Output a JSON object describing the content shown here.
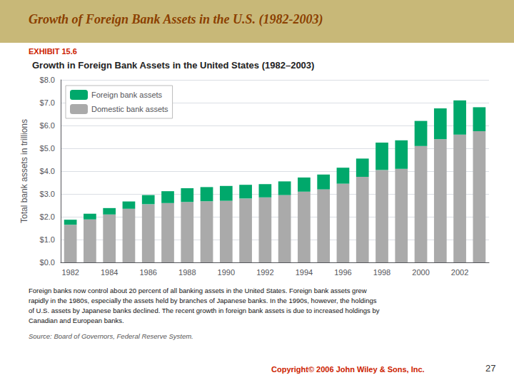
{
  "chart_data": {
    "type": "bar",
    "stacked": true,
    "title": "Growth in Foreign Bank Assets in the United States (1982–2003)",
    "annotations": [
      "Growth of Foreign Bank Assets in the U.S. (1982-2003)",
      "EXHIBIT 15.6",
      "Foreign banks now control about 20 percent of all banking assets in the United States. Foreign bank assets grew\nrapidly in the 1980s, especially the assets held by branches of Japanese banks. In the 1990s, however, the holdings\nof U.S. assets by Japanese banks declined. The recent growth in foreign bank assets is due to increased holdings by\nCanadian and European banks.",
      "Source: Board of Governors, Federal Reserve System.",
      "Copyright© 2006 John Wiley & Sons, Inc.",
      "27"
    ],
    "ylabel": "Total bank assets in trillions",
    "categories": [
      "1982",
      null,
      "1984",
      null,
      "1986",
      null,
      "1988",
      null,
      "1990",
      null,
      "1992",
      null,
      "1994",
      null,
      "1996",
      null,
      "1998",
      null,
      "2000",
      null,
      "2002",
      null
    ],
    "series": [
      {
        "name": "Domestic bank assets",
        "color": "#AAAAAA",
        "values": [
          1.65,
          1.88,
          2.1,
          2.35,
          2.55,
          2.6,
          2.65,
          2.68,
          2.7,
          2.8,
          2.85,
          2.95,
          3.1,
          3.2,
          3.45,
          3.75,
          4.05,
          4.1,
          5.1,
          5.4,
          5.6,
          5.75
        ]
      },
      {
        "name": "Foreign bank assets",
        "color": "#00A86B",
        "values": [
          0.22,
          0.25,
          0.28,
          0.32,
          0.4,
          0.52,
          0.6,
          0.62,
          0.65,
          0.6,
          0.58,
          0.6,
          0.62,
          0.65,
          0.7,
          0.8,
          1.2,
          1.25,
          1.1,
          1.35,
          1.5,
          1.05
        ]
      }
    ],
    "ylim": [
      0,
      8.0
    ],
    "yticks": [
      {
        "value": 0,
        "label": "$0.0"
      },
      {
        "value": 1.0,
        "label": "$1.0"
      },
      {
        "value": 2.0,
        "label": "$2.0"
      },
      {
        "value": 3.0,
        "label": "$3.0"
      },
      {
        "value": 4.0,
        "label": "$4.0"
      },
      {
        "value": 5.0,
        "label": "$5.0"
      },
      {
        "value": 6.0,
        "label": "$6.0"
      },
      {
        "value": 7.0,
        "label": "$7.0"
      },
      {
        "value": 8.0,
        "label": "$8.0"
      }
    ],
    "grid": true,
    "legend": "upper left"
  }
}
